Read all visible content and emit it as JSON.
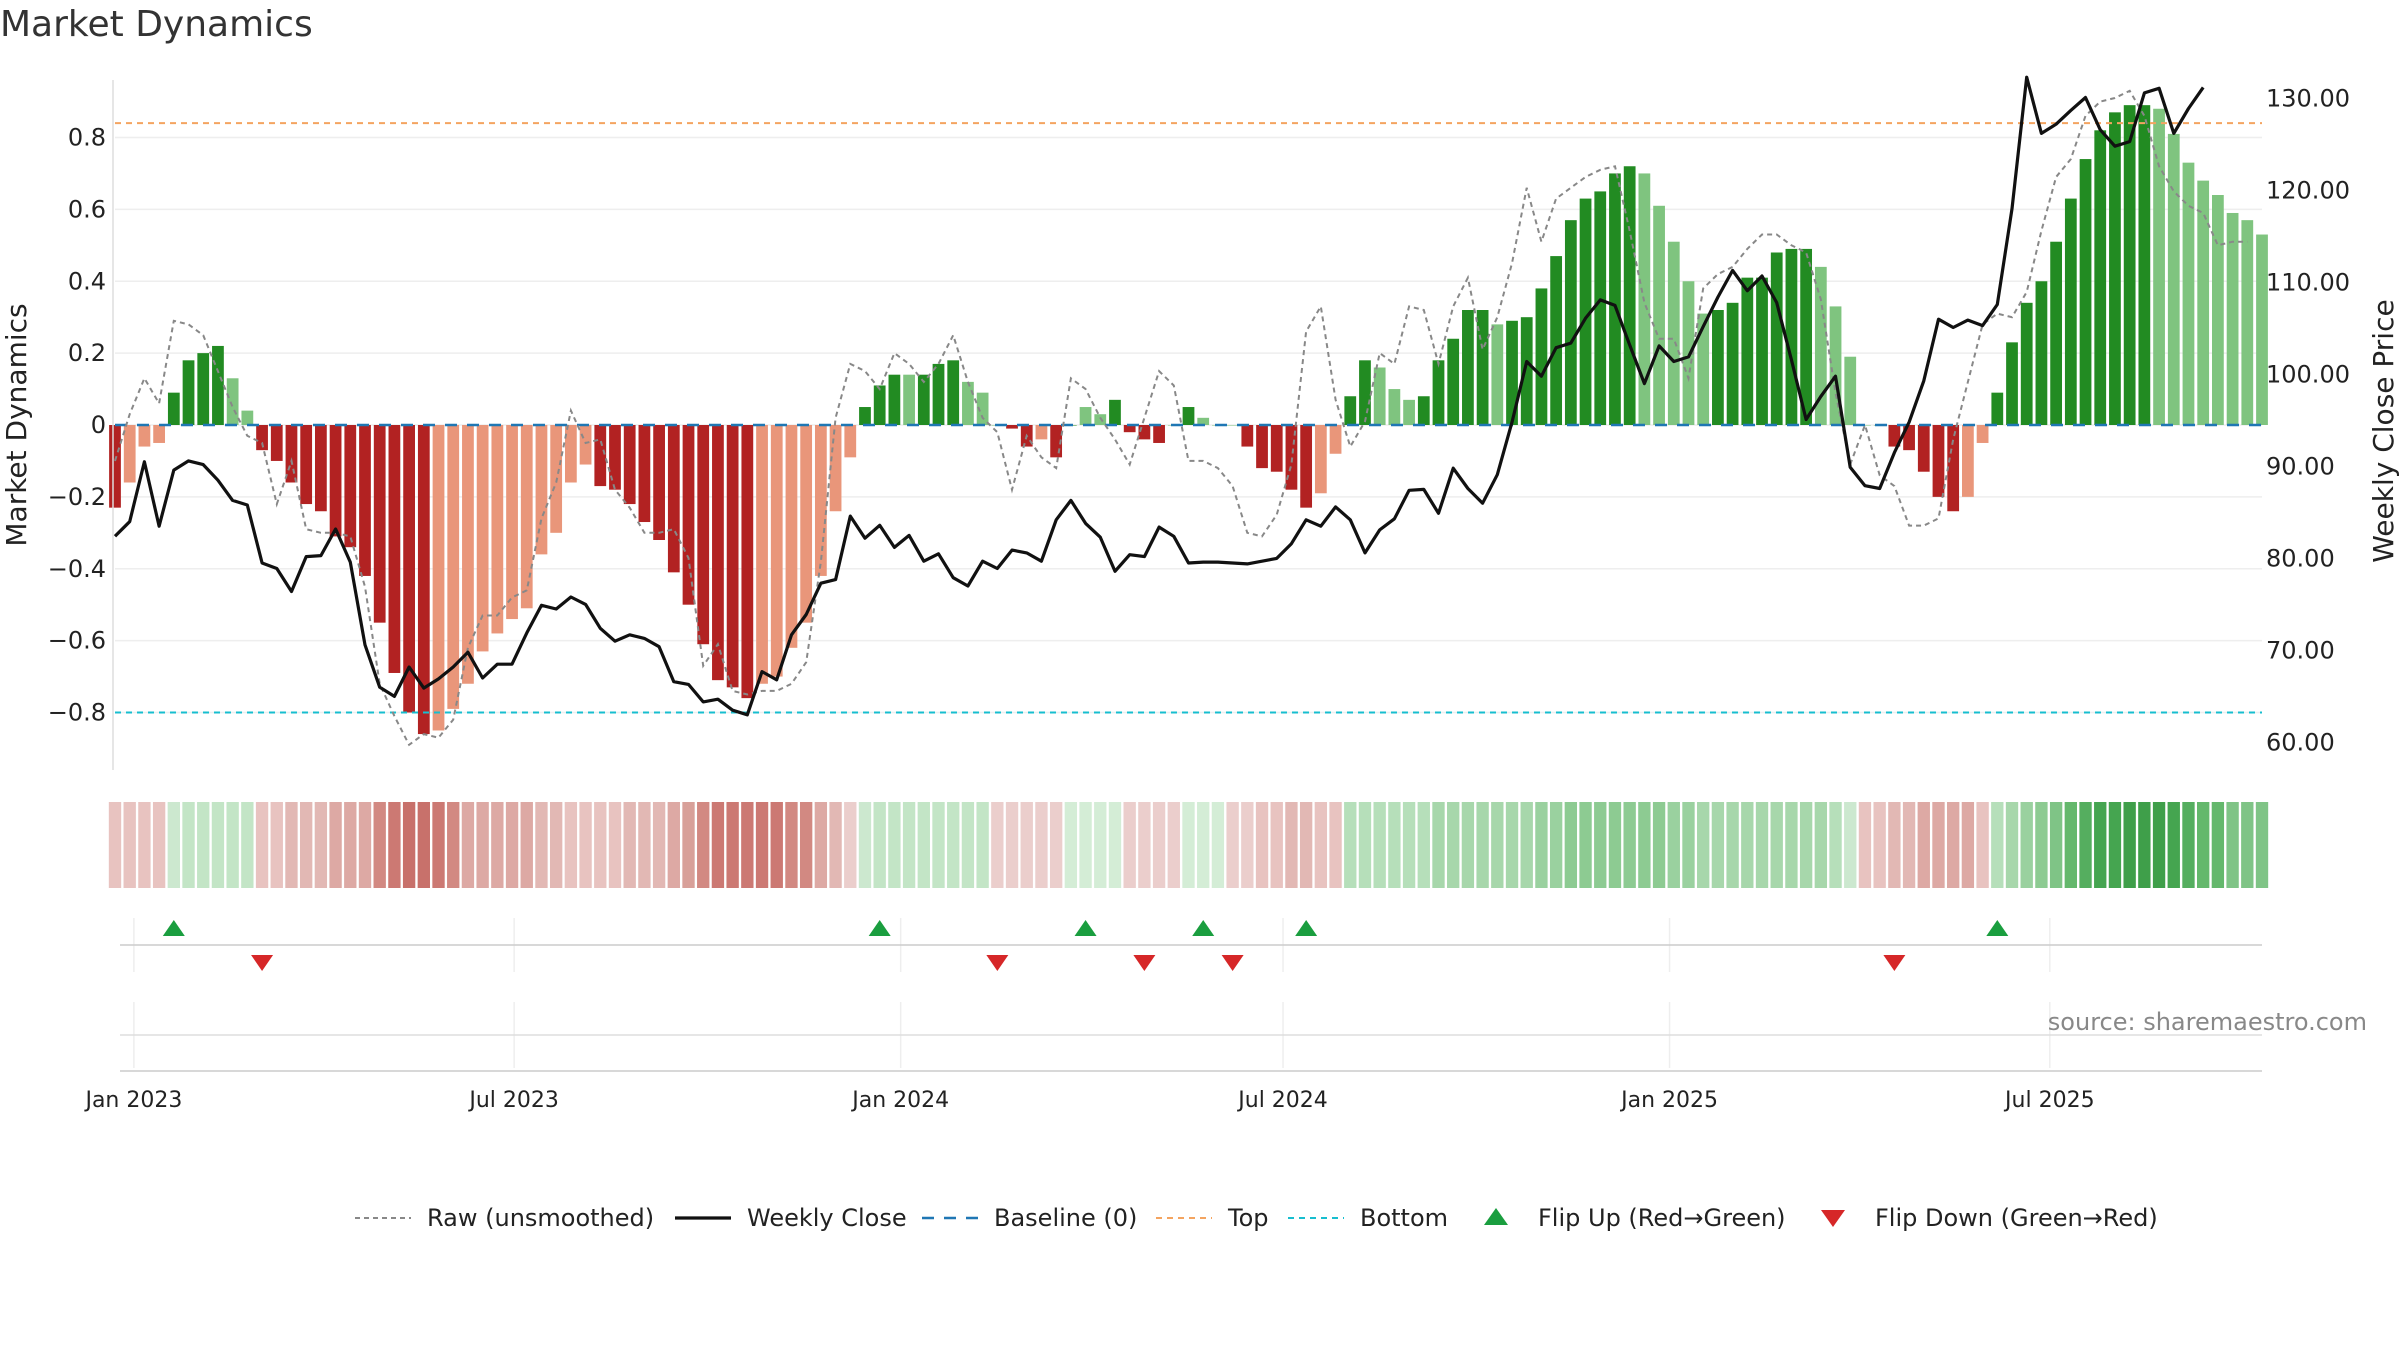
{
  "title": "Market Dynamics",
  "source": "source: sharemaestro.com",
  "colors": {
    "bar_strong_red": "#b22222",
    "bar_light_red": "#e9967a",
    "bar_strong_green": "#228b22",
    "bar_light_green": "#7fc47f",
    "close_line": "#111111",
    "raw_line": "#888888",
    "baseline": "#1f77b4",
    "top": "#f4a460",
    "bottom": "#17becf",
    "flip_up": "#1a9e3f",
    "flip_down": "#d62728"
  },
  "chart_data": {
    "type": "bar",
    "title": "Market Dynamics",
    "ylabel": "Market Dynamics",
    "y2label": "Weekly Close Price",
    "ylim": [
      -0.96,
      0.96
    ],
    "y2lim": [
      57,
      132
    ],
    "yticks": [
      "−0.8",
      "−0.6",
      "−0.4",
      "−0.2",
      "0",
      "0.2",
      "0.4",
      "0.6",
      "0.8"
    ],
    "yticks_values": [
      -0.8,
      -0.6,
      -0.4,
      -0.2,
      0,
      0.2,
      0.4,
      0.6,
      0.8
    ],
    "y2ticks": [
      "60.00",
      "70.00",
      "80.00",
      "90.00",
      "100.00",
      "110.00",
      "120.00",
      "130.00"
    ],
    "y2ticks_values": [
      60,
      70,
      80,
      90,
      100,
      110,
      120,
      130
    ],
    "x_start": "2022-12-23",
    "x_interval_days": 7,
    "xticks": [
      {
        "label": "Jan 2023",
        "date": "2023-01-01"
      },
      {
        "label": "Jul 2023",
        "date": "2023-07-01"
      },
      {
        "label": "Jan 2024",
        "date": "2024-01-01"
      },
      {
        "label": "Jul 2024",
        "date": "2024-07-01"
      },
      {
        "label": "Jan 2025",
        "date": "2025-01-01"
      },
      {
        "label": "Jul 2025",
        "date": "2025-07-01"
      }
    ],
    "top_level": 0.84,
    "bottom_level": -0.8,
    "baseline_level": 0,
    "series": [
      {
        "name": "Market Dynamics",
        "values": [
          -0.23,
          -0.16,
          -0.06,
          -0.05,
          0.09,
          0.18,
          0.2,
          0.22,
          0.13,
          0.04,
          -0.07,
          -0.1,
          -0.16,
          -0.22,
          -0.24,
          -0.31,
          -0.34,
          -0.42,
          -0.55,
          -0.69,
          -0.8,
          -0.86,
          -0.85,
          -0.79,
          -0.72,
          -0.63,
          -0.58,
          -0.54,
          -0.51,
          -0.36,
          -0.3,
          -0.16,
          -0.11,
          -0.17,
          -0.18,
          -0.22,
          -0.27,
          -0.32,
          -0.41,
          -0.5,
          -0.61,
          -0.71,
          -0.73,
          -0.76,
          -0.72,
          -0.7,
          -0.62,
          -0.55,
          -0.42,
          -0.24,
          -0.09,
          0.05,
          0.11,
          0.14,
          0.14,
          0.14,
          0.17,
          0.18,
          0.12,
          0.09,
          0.0,
          -0.01,
          -0.06,
          -0.04,
          -0.09,
          0.0,
          0.05,
          0.03,
          0.07,
          -0.02,
          -0.04,
          -0.05,
          0.0,
          0.05,
          0.02,
          0.0,
          0.0,
          -0.06,
          -0.12,
          -0.13,
          -0.18,
          -0.23,
          -0.19,
          -0.08,
          0.08,
          0.18,
          0.16,
          0.1,
          0.07,
          0.08,
          0.18,
          0.24,
          0.32,
          0.32,
          0.28,
          0.29,
          0.3,
          0.38,
          0.47,
          0.57,
          0.63,
          0.65,
          0.7,
          0.72,
          0.7,
          0.61,
          0.51,
          0.4,
          0.31,
          0.32,
          0.34,
          0.41,
          0.41,
          0.48,
          0.49,
          0.49,
          0.44,
          0.33,
          0.19,
          0.0,
          0.0,
          -0.06,
          -0.07,
          -0.13,
          -0.2,
          -0.24,
          -0.2,
          -0.05,
          0.09,
          0.23,
          0.34,
          0.4,
          0.51,
          0.63,
          0.74,
          0.82,
          0.87,
          0.89,
          0.89,
          0.88,
          0.81,
          0.73,
          0.68,
          0.64,
          0.59,
          0.57,
          0.53
        ],
        "bar_shades": [
          "strong",
          "light",
          "light",
          "light",
          "strong",
          "strong",
          "strong",
          "strong",
          "light",
          "light",
          "strong",
          "strong",
          "strong",
          "strong",
          "strong",
          "strong",
          "strong",
          "strong",
          "strong",
          "strong",
          "strong",
          "strong",
          "light",
          "light",
          "light",
          "light",
          "light",
          "light",
          "light",
          "light",
          "light",
          "light",
          "light",
          "strong",
          "strong",
          "strong",
          "strong",
          "strong",
          "strong",
          "strong",
          "strong",
          "strong",
          "strong",
          "strong",
          "light",
          "light",
          "light",
          "light",
          "light",
          "light",
          "light",
          "strong",
          "strong",
          "strong",
          "light",
          "strong",
          "strong",
          "strong",
          "light",
          "light",
          "light",
          "strong",
          "strong",
          "light",
          "strong",
          "strong",
          "light",
          "light",
          "strong",
          "strong",
          "strong",
          "strong",
          "light",
          "strong",
          "light",
          "light",
          "light",
          "strong",
          "strong",
          "strong",
          "strong",
          "strong",
          "light",
          "light",
          "strong",
          "strong",
          "light",
          "light",
          "light",
          "strong",
          "strong",
          "strong",
          "strong",
          "strong",
          "light",
          "strong",
          "strong",
          "strong",
          "strong",
          "strong",
          "strong",
          "strong",
          "strong",
          "strong",
          "light",
          "light",
          "light",
          "light",
          "light",
          "strong",
          "strong",
          "strong",
          "strong",
          "strong",
          "strong",
          "strong",
          "light",
          "light",
          "light",
          "light",
          "light",
          "strong",
          "strong",
          "strong",
          "strong",
          "strong",
          "light",
          "light",
          "strong",
          "strong",
          "strong",
          "strong",
          "strong",
          "strong",
          "strong",
          "strong",
          "strong",
          "strong",
          "strong",
          "light",
          "light",
          "light",
          "light",
          "light",
          "light",
          "light"
        ]
      },
      {
        "name": "Raw (unsmoothed)",
        "values": [
          -0.1,
          0.03,
          0.13,
          0.06,
          0.29,
          0.28,
          0.25,
          0.15,
          0.05,
          -0.03,
          -0.05,
          -0.22,
          -0.1,
          -0.29,
          -0.3,
          -0.3,
          -0.31,
          -0.45,
          -0.72,
          -0.81,
          -0.89,
          -0.86,
          -0.87,
          -0.82,
          -0.62,
          -0.53,
          -0.53,
          -0.48,
          -0.46,
          -0.26,
          -0.16,
          0.04,
          -0.05,
          -0.04,
          -0.18,
          -0.23,
          -0.3,
          -0.3,
          -0.29,
          -0.37,
          -0.67,
          -0.61,
          -0.74,
          -0.75,
          -0.74,
          -0.74,
          -0.72,
          -0.66,
          -0.38,
          0.02,
          0.17,
          0.15,
          0.1,
          0.2,
          0.17,
          0.12,
          0.17,
          0.25,
          0.12,
          0.02,
          -0.02,
          -0.18,
          -0.03,
          -0.09,
          -0.12,
          0.13,
          0.1,
          0.02,
          -0.04,
          -0.11,
          0.02,
          0.15,
          0.11,
          -0.1,
          -0.1,
          -0.12,
          -0.17,
          -0.3,
          -0.31,
          -0.25,
          -0.11,
          0.26,
          0.33,
          0.07,
          -0.06,
          0.01,
          0.2,
          0.17,
          0.33,
          0.32,
          0.17,
          0.33,
          0.41,
          0.21,
          0.3,
          0.45,
          0.66,
          0.51,
          0.63,
          0.66,
          0.69,
          0.71,
          0.72,
          0.54,
          0.34,
          0.24,
          0.24,
          0.13,
          0.38,
          0.42,
          0.44,
          0.49,
          0.53,
          0.53,
          0.5,
          0.48,
          0.35,
          0.09,
          -0.11,
          0.0,
          -0.14,
          -0.17,
          -0.28,
          -0.28,
          -0.26,
          -0.04,
          0.12,
          0.28,
          0.31,
          0.3,
          0.37,
          0.54,
          0.69,
          0.74,
          0.86,
          0.9,
          0.91,
          0.93,
          0.86,
          0.72,
          0.65,
          0.61,
          0.59,
          0.5,
          0.51,
          0.51
        ]
      },
      {
        "name": "Weekly Close",
        "values": [
          82.4,
          84,
          90.5,
          83.5,
          89.6,
          90.6,
          90.2,
          88.5,
          86.3,
          85.8,
          79.5,
          78.9,
          76.4,
          80.2,
          80.3,
          83.2,
          79.6,
          70.6,
          66,
          65,
          68.2,
          65.9,
          66.9,
          68.2,
          69.8,
          67,
          68.5,
          68.5,
          71.9,
          74.9,
          74.5,
          75.8,
          75,
          72.4,
          71,
          71.7,
          71.3,
          70.4,
          66.6,
          66.3,
          64.4,
          64.7,
          63.5,
          63,
          67.7,
          66.8,
          71.7,
          73.9,
          77.3,
          77.7,
          84.6,
          82.2,
          83.6,
          81.2,
          82.5,
          79.7,
          80.5,
          77.9,
          77,
          79.7,
          78.9,
          80.9,
          80.6,
          79.7,
          84.2,
          86.3,
          83.8,
          82.3,
          78.6,
          80.4,
          80.2,
          83.4,
          82.4,
          79.5,
          79.6,
          79.6,
          79.5,
          79.4,
          79.7,
          80,
          81.6,
          84.2,
          83.5,
          85.6,
          84.2,
          80.6,
          83.1,
          84.3,
          87.4,
          87.5,
          84.9,
          89.8,
          87.6,
          86,
          89.1,
          94.8,
          101.4,
          99.8,
          102.9,
          103.4,
          106.1,
          108.1,
          107.5,
          103.2,
          99,
          103.1,
          101.4,
          101.9,
          105.2,
          108.4,
          111.3,
          109.1,
          110.7,
          107.8,
          101.6,
          95.1,
          97.6,
          99.8,
          89.9,
          87.9,
          87.6,
          91.5,
          94.8,
          99.3,
          106,
          105.1,
          105.9,
          105.3,
          107.6,
          118,
          132.3,
          126.2,
          127.2,
          128.7,
          130.1,
          126.6,
          124.8,
          125.3,
          130.6,
          131.1,
          126.2,
          128.9,
          131.2
        ]
      }
    ],
    "strip_colors": [
      "#e8c3c0",
      "#e8c3c0",
      "#e8c3c0",
      "#e8c3c0",
      "#cce8cf",
      "#c3e5c6",
      "#c3e5c6",
      "#c3e5c6",
      "#c3e5c6",
      "#c3e5c6",
      "#e8c3c0",
      "#e8c3c0",
      "#e2b8b4",
      "#e2b8b4",
      "#e2b8b4",
      "#dda9a4",
      "#dda9a4",
      "#dda9a4",
      "#d28982",
      "#cc7973",
      "#c8716b",
      "#c8716b",
      "#cc7973",
      "#d28982",
      "#dda9a4",
      "#dda9a4",
      "#dda9a4",
      "#dda9a4",
      "#dda9a4",
      "#e2b8b4",
      "#e2b8b4",
      "#e8c3c0",
      "#e8c3c0",
      "#e8c3c0",
      "#e8c3c0",
      "#e2b8b4",
      "#e2b8b4",
      "#e2b8b4",
      "#dda9a4",
      "#d8a099",
      "#d28982",
      "#cc7973",
      "#cc7973",
      "#cc7973",
      "#cc7973",
      "#cc7973",
      "#d28982",
      "#d28982",
      "#dda9a4",
      "#e2b8b4",
      "#ebcecc",
      "#cce8cf",
      "#c3e5c6",
      "#c3e5c6",
      "#c3e5c6",
      "#c3e5c6",
      "#c3e5c6",
      "#c3e5c6",
      "#c3e5c6",
      "#c3e5c6",
      "#ebcecc",
      "#ebcecc",
      "#ebcecc",
      "#ebcecc",
      "#ebcecc",
      "#d4edd6",
      "#d4edd6",
      "#d4edd6",
      "#d4edd6",
      "#ebcecc",
      "#ebcecc",
      "#ebcecc",
      "#ebcecc",
      "#d4edd6",
      "#d4edd6",
      "#d4edd6",
      "#ebcecc",
      "#ebcecc",
      "#e8c3c0",
      "#e8c3c0",
      "#e2b8b4",
      "#e2b8b4",
      "#e8c3c0",
      "#e8c3c0",
      "#b6dfba",
      "#b6dfba",
      "#b6dfba",
      "#b6dfba",
      "#b6dfba",
      "#b6dfba",
      "#a7d7ab",
      "#a7d7ab",
      "#a7d7ab",
      "#a7d7ab",
      "#a7d7ab",
      "#a7d7ab",
      "#a7d7ab",
      "#9ad19f",
      "#9ad19f",
      "#8dcb92",
      "#8dcb92",
      "#8dcb92",
      "#8dcb92",
      "#8dcb92",
      "#8dcb92",
      "#8dcb92",
      "#9ad19f",
      "#9ad19f",
      "#a7d7ab",
      "#a7d7ab",
      "#a7d7ab",
      "#a7d7ab",
      "#a7d7ab",
      "#a7d7ab",
      "#a7d7ab",
      "#a7d7ab",
      "#a7d7ab",
      "#b6dfba",
      "#cce8cf",
      "#e8c3c0",
      "#e8c3c0",
      "#e2b8b4",
      "#e2b8b4",
      "#dda9a4",
      "#dda9a4",
      "#dda9a4",
      "#dda9a4",
      "#e8c3c0",
      "#b6dfba",
      "#a7d7ab",
      "#9ad19f",
      "#8dcb92",
      "#7fc486",
      "#64b86c",
      "#55ae5f",
      "#45a550",
      "#45a550",
      "#3f9f4a",
      "#3f9f4a",
      "#3f9f4a",
      "#45a550",
      "#55ae5f",
      "#64b86c",
      "#64b86c",
      "#7fc486",
      "#7fc486",
      "#7fc486"
    ],
    "flips_up": [
      "2023-01-20",
      "2023-12-22",
      "2024-03-29",
      "2024-05-24",
      "2024-07-12",
      "2025-06-06"
    ],
    "flips_down": [
      "2023-03-03",
      "2024-02-16",
      "2024-04-26",
      "2024-06-07",
      "2025-04-18"
    ],
    "legend": [
      {
        "key": "raw",
        "label": "Raw (unsmoothed)"
      },
      {
        "key": "close",
        "label": "Weekly Close"
      },
      {
        "key": "baseline",
        "label": "Baseline (0)"
      },
      {
        "key": "top",
        "label": "Top"
      },
      {
        "key": "bottom",
        "label": "Bottom"
      },
      {
        "key": "flip_up",
        "label": "Flip Up (Red→Green)"
      },
      {
        "key": "flip_down",
        "label": "Flip Down (Green→Red)"
      }
    ]
  }
}
